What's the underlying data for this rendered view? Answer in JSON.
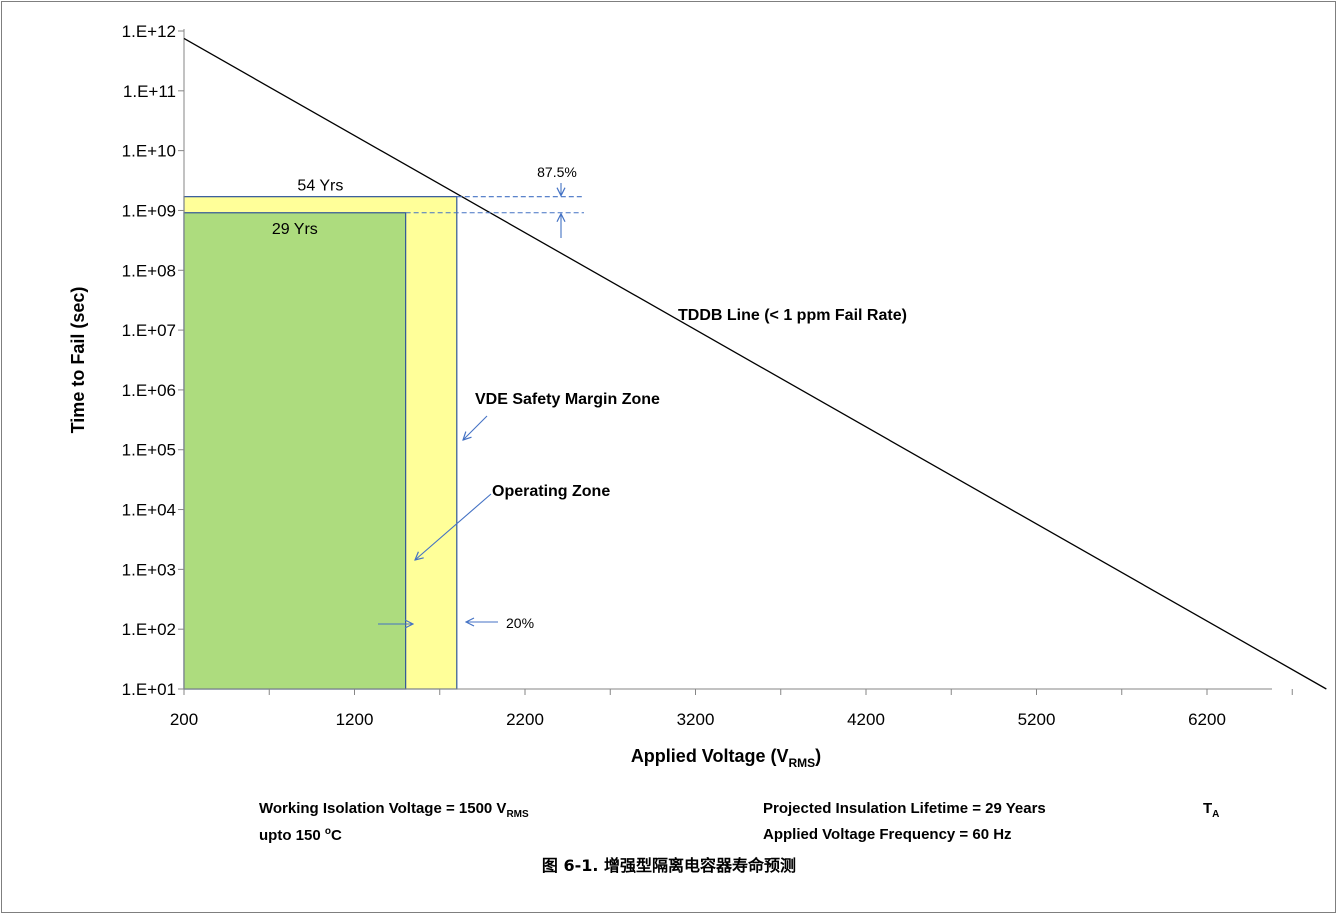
{
  "chart_data": {
    "type": "line",
    "title": "",
    "xlabel": "Applied Voltage (V",
    "xlabel_sub": "RMS",
    "xlabel_close": ")",
    "ylabel": "Time to Fail (sec)",
    "x_scale": "linear",
    "y_scale": "log",
    "xlim": [
      200,
      7000
    ],
    "ylim": [
      10,
      1000000000000
    ],
    "x_ticks": [
      200,
      1200,
      2200,
      3200,
      4200,
      5200,
      6200
    ],
    "x_tick_labels": [
      "200",
      "1200",
      "2200",
      "3200",
      "4200",
      "5200",
      "6200"
    ],
    "y_ticks": [
      10,
      100,
      1000,
      10000,
      100000,
      1000000,
      10000000,
      100000000,
      1000000000,
      10000000000,
      100000000000,
      1000000000000
    ],
    "y_tick_labels": [
      "1.E+01",
      "1.E+02",
      "1.E+03",
      "1.E+04",
      "1.E+05",
      "1.E+06",
      "1.E+07",
      "1.E+08",
      "1.E+09",
      "1.E+10",
      "1.E+11",
      "1.E+12"
    ],
    "grid": false,
    "series": [
      {
        "name": "TDDB Line (< 1 ppm Fail Rate)",
        "x": [
          200,
          6900
        ],
        "y": [
          750000000000,
          10
        ]
      }
    ],
    "zones": [
      {
        "name": "VDE Safety Margin Zone",
        "x_range": [
          200,
          1800
        ],
        "y_range": [
          10,
          1700000000
        ],
        "color": "#FFFF99"
      },
      {
        "name": "Operating  Zone",
        "x_range": [
          200,
          1500
        ],
        "y_range": [
          10,
          915000000
        ],
        "color": "#ADDC7E"
      }
    ],
    "annotations": {
      "lifetime_54": "54 Yrs",
      "lifetime_29": "29 Yrs",
      "pct_875": "87.5%",
      "pct_20": "20%",
      "tddb_label": "TDDB Line (< 1 ppm Fail Rate)",
      "vde_label": "VDE Safety Margin Zone",
      "operating_label": "Operating  Zone"
    },
    "colors": {
      "line": "#000000",
      "annotation": "#4472C4",
      "axis": "#868686"
    }
  },
  "footer": {
    "working_voltage_prefix": "Working Isolation Voltage = 1500 V",
    "working_voltage_sub": "RMS",
    "temp_prefix": "upto 150 ",
    "temp_sup": "o",
    "temp_suffix": "C",
    "lifetime": "Projected Insulation Lifetime =  29 Years",
    "frequency": "Applied Voltage Frequency = 60 Hz",
    "ta_main": "T",
    "ta_sub": "A"
  },
  "caption": "图 6-1. 增强型隔离电容器寿命预测"
}
